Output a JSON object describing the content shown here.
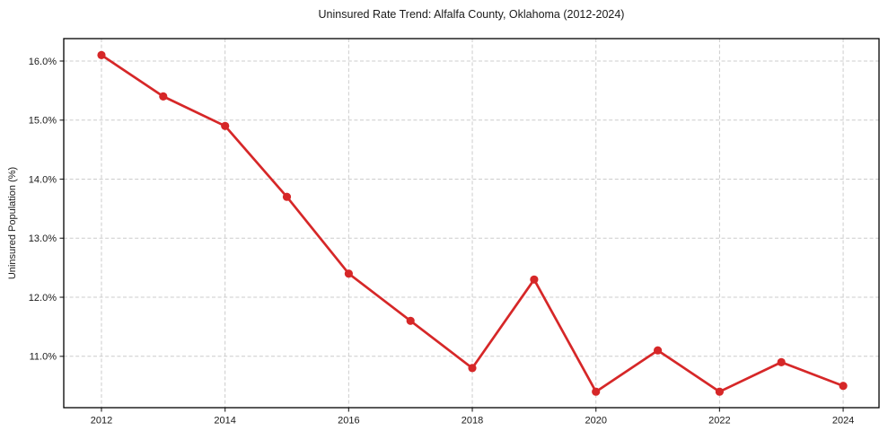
{
  "chart_data": {
    "type": "line",
    "title": "Uninsured Rate Trend: Alfalfa County, Oklahoma (2012-2024)",
    "xlabel": "",
    "ylabel": "Uninsured Population (%)",
    "x": [
      2012,
      2013,
      2014,
      2015,
      2016,
      2017,
      2018,
      2019,
      2020,
      2021,
      2022,
      2023,
      2024
    ],
    "values": [
      16.1,
      15.4,
      14.9,
      13.7,
      12.4,
      11.6,
      10.8,
      12.3,
      10.4,
      11.1,
      10.4,
      10.9,
      10.5
    ],
    "xticks": {
      "values": [
        2012,
        2014,
        2016,
        2018,
        2020,
        2022,
        2024
      ],
      "labels": [
        "2012",
        "2014",
        "2016",
        "2018",
        "2020",
        "2022",
        "2024"
      ]
    },
    "yticks": {
      "values": [
        11,
        12,
        13,
        14,
        15,
        16
      ],
      "labels": [
        "11.0%",
        "12.0%",
        "13.0%",
        "14.0%",
        "15.0%",
        "16.0%"
      ]
    },
    "xlim": [
      2011.39,
      2024.58
    ],
    "ylim": [
      10.13,
      16.38
    ],
    "grid": "dashed",
    "legend": "none",
    "line_color": "#d62728",
    "grid_color": "#cccccc",
    "spine_color": "#000000",
    "background": "#ffffff",
    "marker": "circle"
  }
}
